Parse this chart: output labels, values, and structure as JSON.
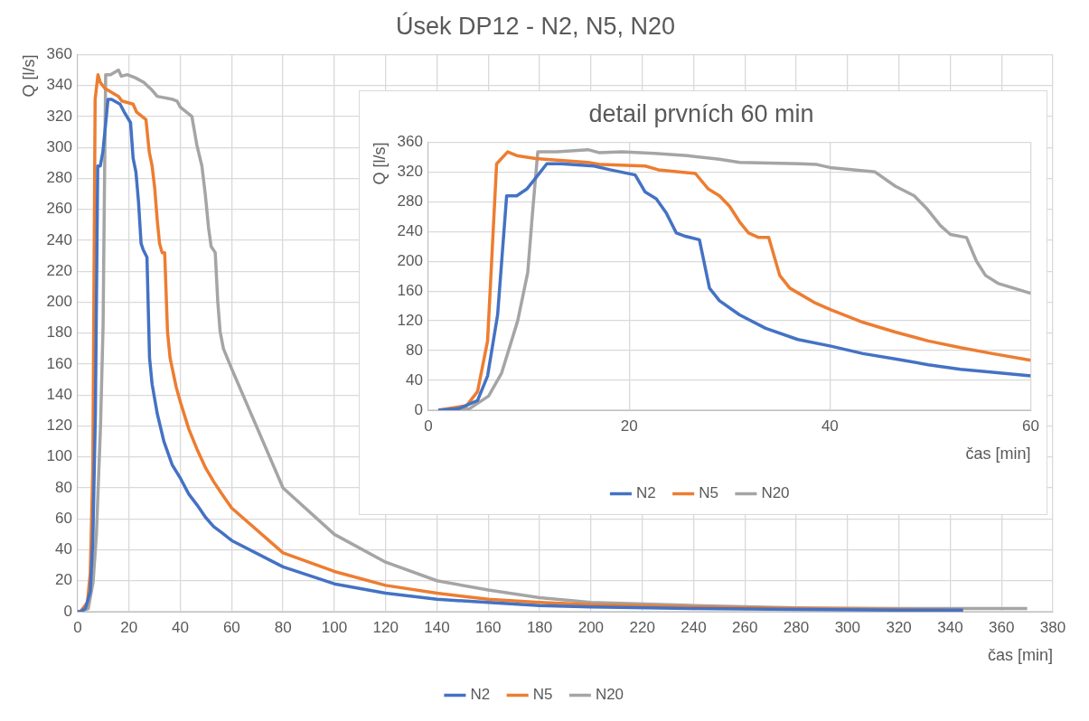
{
  "chart_data": [
    {
      "type": "line",
      "title": "Úsek DP12 - N2, N5, N20",
      "xlabel": "čas [min]",
      "ylabel": "Q [l/s]",
      "xlim": [
        0,
        380
      ],
      "xticks": [
        0,
        20,
        40,
        60,
        80,
        100,
        120,
        140,
        160,
        180,
        200,
        220,
        240,
        260,
        280,
        300,
        320,
        340,
        360,
        380
      ],
      "ylim": [
        0,
        360
      ],
      "yticks": [
        0,
        20,
        40,
        60,
        80,
        100,
        120,
        140,
        160,
        180,
        200,
        220,
        240,
        260,
        280,
        300,
        320,
        340,
        360
      ],
      "grid": true,
      "legend": "bottom",
      "series": [
        {
          "name": "N2",
          "color": "#4472c4",
          "x": [
            0,
            1,
            3,
            4.9,
            5.9,
            6.9,
            7.8,
            8.8,
            9.8,
            10.7,
            11.8,
            13.2,
            16.5,
            18.1,
            20.6,
            21.6,
            22.7,
            23.7,
            24.7,
            25.5,
            27,
            28,
            29,
            31,
            33.6,
            36.8,
            40.1,
            43.3,
            46.5,
            49.8,
            53,
            56.2,
            60,
            80,
            100,
            120,
            140,
            160,
            180,
            200,
            240,
            280,
            320,
            345
          ],
          "values": [
            0,
            0,
            2,
            13,
            46,
            128,
            288,
            288,
            297,
            312,
            331,
            331,
            328,
            323,
            316,
            293,
            284,
            265,
            238,
            234,
            229,
            164,
            147,
            128,
            110,
            95,
            86,
            76,
            69,
            61,
            55,
            51,
            46,
            29,
            18,
            12,
            8,
            6,
            4,
            3,
            2,
            1.5,
            1,
            1
          ]
        },
        {
          "name": "N5",
          "color": "#ed7d31",
          "x": [
            0,
            1,
            3.8,
            4.9,
            5.9,
            6.8,
            7.9,
            8.8,
            10.7,
            15.9,
            17.2,
            21.6,
            22.9,
            26.6,
            27.9,
            29,
            30,
            31,
            31.9,
            32.9,
            33.9,
            35,
            36,
            38.4,
            40.1,
            43.3,
            46.5,
            49.8,
            53,
            56.2,
            60,
            80,
            100,
            120,
            140,
            160,
            180,
            200,
            240,
            280,
            320,
            345
          ],
          "values": [
            0,
            0,
            6,
            25,
            93,
            331,
            347,
            342,
            338,
            333,
            330,
            328,
            323,
            318,
            297,
            288,
            274,
            253,
            238,
            232,
            232,
            181,
            164,
            145,
            135,
            118,
            105,
            93,
            84,
            76,
            67,
            38,
            26,
            17,
            12,
            8,
            6,
            4.5,
            3,
            2,
            1.5,
            1
          ]
        },
        {
          "name": "N20",
          "color": "#a5a5a5",
          "x": [
            0,
            1,
            4.1,
            6,
            7.3,
            8.9,
            9.9,
            10.4,
            10.9,
            12.8,
            15.9,
            17,
            19.3,
            22.5,
            25.8,
            29,
            31,
            37.1,
            38.7,
            40,
            44.5,
            46.5,
            48.4,
            49.7,
            51,
            52,
            53.6,
            54.6,
            55.5,
            56.8,
            60,
            80,
            100,
            120,
            140,
            160,
            180,
            200,
            240,
            280,
            320,
            370
          ],
          "values": [
            0,
            0,
            2,
            19,
            50,
            120,
            185,
            269,
            347,
            347,
            350,
            346,
            347,
            345,
            342,
            337,
            333,
            331,
            330,
            326,
            320,
            301,
            288,
            270,
            248,
            236,
            232,
            200,
            181,
            170,
            157,
            80,
            50,
            32,
            20,
            14,
            9,
            6,
            4,
            2.5,
            2,
            2
          ]
        }
      ]
    },
    {
      "type": "line",
      "title": "detail prvních 60 min",
      "xlabel": "čas [min]",
      "ylabel": "Q [l/s]",
      "xlim": [
        0,
        60
      ],
      "xticks": [
        0,
        20,
        40,
        60
      ],
      "ylim": [
        0,
        360
      ],
      "yticks": [
        0,
        40,
        80,
        120,
        160,
        200,
        240,
        280,
        320,
        360
      ],
      "grid": true,
      "legend": "bottom",
      "series": [
        {
          "name": "N2",
          "color": "#4472c4",
          "x": [
            1,
            3,
            4.9,
            5.9,
            6.9,
            7.8,
            8.8,
            9.8,
            10.7,
            11.8,
            13.2,
            16.5,
            18.1,
            20.6,
            21.6,
            22.7,
            23.7,
            24.7,
            25.5,
            27,
            28,
            29,
            31,
            33.6,
            36.8,
            40.1,
            43.3,
            46.5,
            49.8,
            53,
            56.2,
            60
          ],
          "values": [
            0,
            2,
            13,
            46,
            128,
            288,
            288,
            297,
            312,
            331,
            331,
            328,
            323,
            316,
            293,
            284,
            265,
            238,
            234,
            229,
            164,
            147,
            128,
            110,
            95,
            86,
            76,
            69,
            61,
            55,
            51,
            46
          ]
        },
        {
          "name": "N5",
          "color": "#ed7d31",
          "x": [
            1,
            3.8,
            4.9,
            5.9,
            6.8,
            7.9,
            8.8,
            10.7,
            15.9,
            17.2,
            21.6,
            22.9,
            26.6,
            27.9,
            29,
            30,
            31,
            31.9,
            32.9,
            33.9,
            35,
            36,
            38.4,
            40.1,
            43.3,
            46.5,
            49.8,
            53,
            56.2,
            60
          ],
          "values": [
            0,
            6,
            25,
            93,
            331,
            347,
            342,
            338,
            333,
            330,
            328,
            323,
            318,
            297,
            288,
            274,
            253,
            238,
            232,
            232,
            181,
            164,
            145,
            135,
            118,
            105,
            93,
            84,
            76,
            67
          ]
        },
        {
          "name": "N20",
          "color": "#a5a5a5",
          "x": [
            1,
            4.1,
            6,
            7.3,
            8.9,
            9.9,
            10.4,
            10.9,
            12.8,
            15.9,
            17,
            19.3,
            22.5,
            25.8,
            29,
            31,
            37.1,
            38.7,
            40,
            44.5,
            46.5,
            48.4,
            49.7,
            51,
            52,
            53.6,
            54.6,
            55.5,
            56.8,
            60
          ],
          "values": [
            0,
            2,
            19,
            50,
            120,
            185,
            269,
            347,
            347,
            350,
            346,
            347,
            345,
            342,
            337,
            333,
            331,
            330,
            326,
            320,
            301,
            288,
            270,
            248,
            236,
            232,
            200,
            181,
            170,
            157
          ]
        }
      ]
    }
  ]
}
